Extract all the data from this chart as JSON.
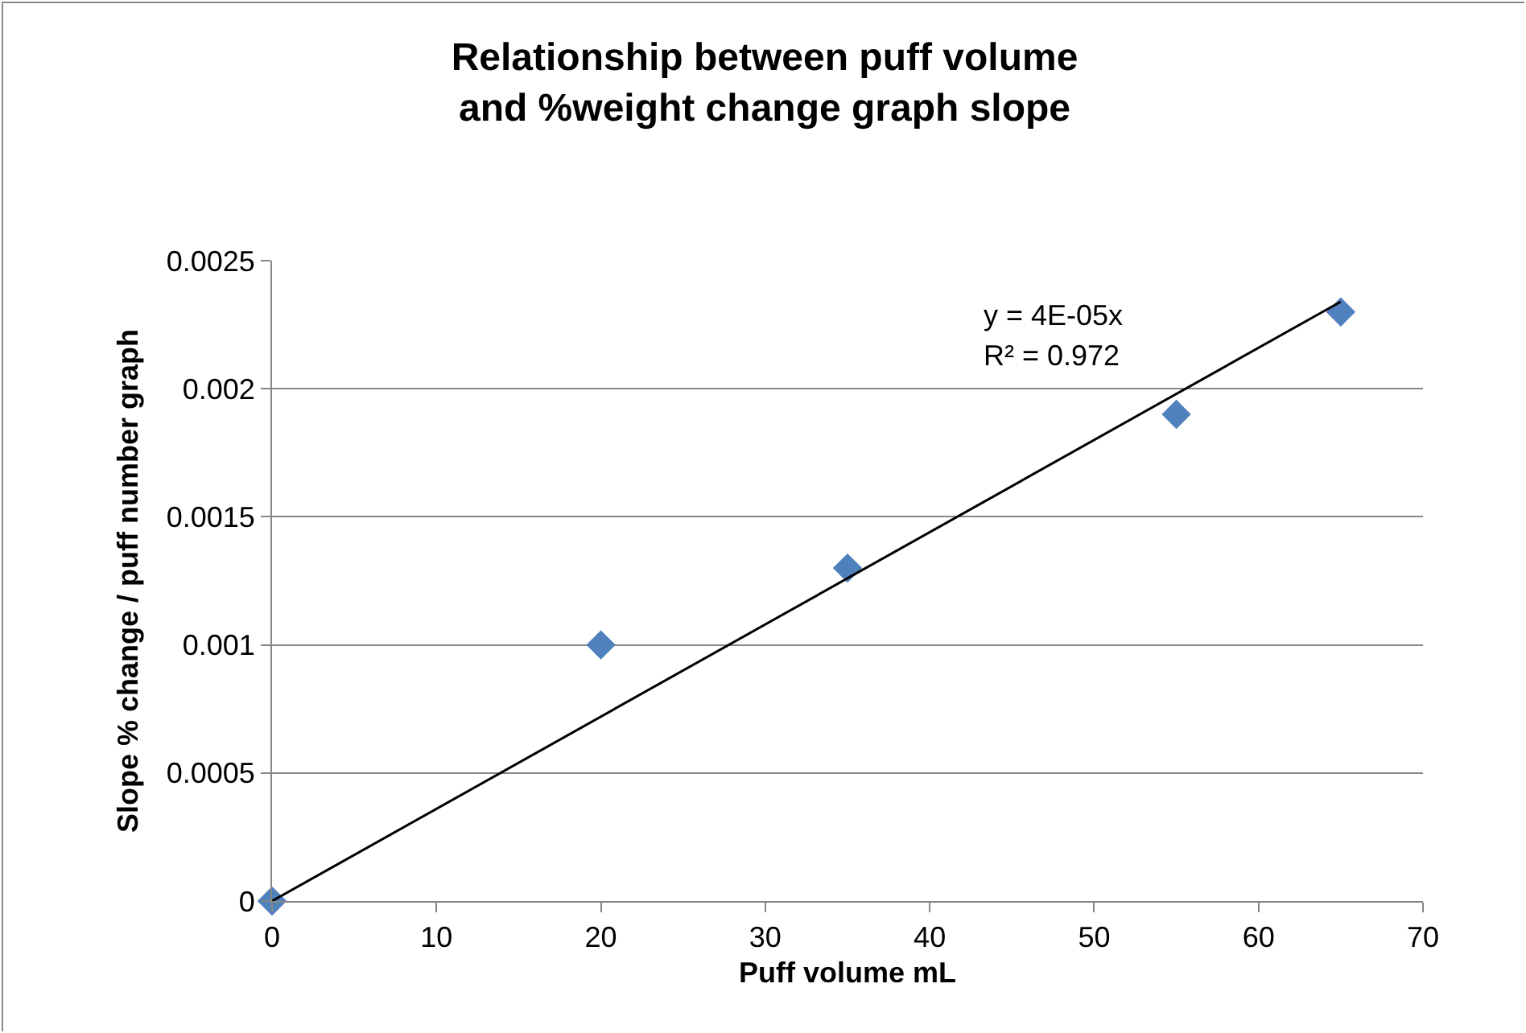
{
  "chart_data": {
    "type": "scatter",
    "title": "Relationship between puff volume and %weight change graph slope",
    "xlabel": "Puff volume mL",
    "ylabel": "Slope % change / puff number graph",
    "x": [
      0,
      20,
      35,
      55,
      65
    ],
    "series": [
      {
        "color": "#4f81bd",
        "marker": "diamond",
        "values": [
          0,
          0.001,
          0.0013,
          0.0019,
          0.0023
        ]
      },
      {
        "type": "line",
        "color": "#000000",
        "marker": "none",
        "x": [
          0,
          65
        ],
        "values": [
          0,
          0.00234
        ]
      }
    ],
    "annotations": [
      "y = 4E-05x",
      "R² = 0.972"
    ],
    "xlim": [
      0,
      70
    ],
    "xticks": [
      0,
      10,
      20,
      30,
      40,
      50,
      60,
      70
    ],
    "ylim": [
      0,
      0.0025
    ],
    "yticks": [
      0,
      0.0005,
      0.001,
      0.0015,
      0.002,
      0.0025
    ],
    "grid": "y"
  }
}
